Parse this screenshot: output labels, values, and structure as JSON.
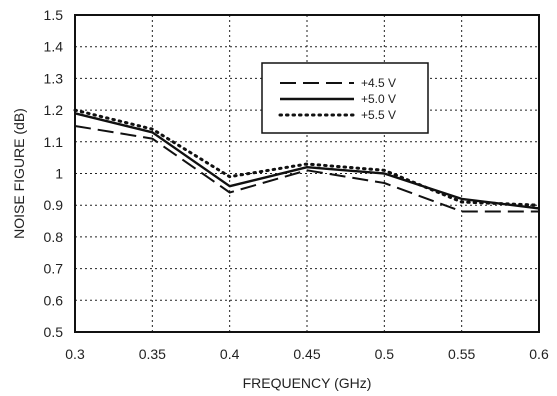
{
  "chart_data": {
    "type": "line",
    "xlabel": "FREQUENCY (GHz)",
    "ylabel": "NOISE FIGURE (dB)",
    "xlim": [
      0.3,
      0.6
    ],
    "ylim": [
      0.5,
      1.5
    ],
    "x_ticks": [
      0.3,
      0.35,
      0.4,
      0.45,
      0.5,
      0.55,
      0.6
    ],
    "x_tick_labels": [
      "0.3",
      "0.35",
      "0.4",
      "0.45",
      "0.5",
      "0.55",
      "0.6"
    ],
    "y_ticks": [
      0.5,
      0.6,
      0.7,
      0.8,
      0.9,
      1.0,
      1.1,
      1.2,
      1.3,
      1.4,
      1.5
    ],
    "y_tick_labels": [
      "0.5",
      "0.6",
      "0.7",
      "0.8",
      "0.9",
      "1",
      "1.1",
      "1.2",
      "1.3",
      "1.4",
      "1.5"
    ],
    "grid": true,
    "legend_position": "top-right",
    "series": [
      {
        "name": "+4.5 V",
        "style": "dashed",
        "points": [
          [
            0.3,
            1.15
          ],
          [
            0.35,
            1.11
          ],
          [
            0.4,
            0.94
          ],
          [
            0.45,
            1.01
          ],
          [
            0.5,
            0.97
          ],
          [
            0.55,
            0.88
          ],
          [
            0.6,
            0.88
          ]
        ]
      },
      {
        "name": "+5.0 V",
        "style": "solid",
        "points": [
          [
            0.3,
            1.19
          ],
          [
            0.35,
            1.13
          ],
          [
            0.4,
            0.96
          ],
          [
            0.45,
            1.02
          ],
          [
            0.5,
            1.0
          ],
          [
            0.55,
            0.92
          ],
          [
            0.6,
            0.89
          ]
        ]
      },
      {
        "name": "+5.5 V",
        "style": "dotted",
        "points": [
          [
            0.3,
            1.2
          ],
          [
            0.35,
            1.14
          ],
          [
            0.4,
            0.99
          ],
          [
            0.45,
            1.03
          ],
          [
            0.5,
            1.01
          ],
          [
            0.55,
            0.91
          ],
          [
            0.6,
            0.9
          ]
        ]
      }
    ]
  }
}
